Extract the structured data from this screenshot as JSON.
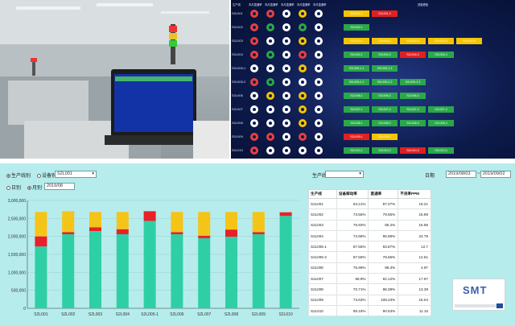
{
  "dashboard": {
    "headers": [
      "生产线",
      "本月直通率",
      "本月直通率",
      "本月直通率",
      "本月直通率",
      "本月直通率",
      "进度看板"
    ],
    "lines": [
      {
        "label": "S2L001",
        "boxes": [
          {
            "text": "S2L001-1",
            "color": "#f5c400"
          },
          {
            "text": "S2L001-2",
            "color": "#e02020"
          }
        ]
      },
      {
        "label": "S2L002",
        "boxes": [
          {
            "text": "S2L002-1",
            "color": "#2aa84a"
          }
        ]
      },
      {
        "label": "S2L003",
        "boxes": [
          {
            "text": "S2L003-1",
            "color": "#f5c400"
          },
          {
            "text": "S2L003-2",
            "color": "#f5c400"
          },
          {
            "text": "S2L003-3",
            "color": "#f5c400"
          },
          {
            "text": "S2L003-4",
            "color": "#f5c400"
          },
          {
            "text": "S2L003-5",
            "color": "#f5c400"
          }
        ]
      },
      {
        "label": "S2L004",
        "boxes": [
          {
            "text": "S2L004-1",
            "color": "#2aa84a"
          },
          {
            "text": "S2L004-2",
            "color": "#2aa84a"
          },
          {
            "text": "S2L004-3",
            "color": "#e02020"
          },
          {
            "text": "S2L004-4",
            "color": "#2aa84a"
          }
        ]
      },
      {
        "label": "S2L005-1",
        "boxes": [
          {
            "text": "S2L005-1-1",
            "color": "#2aa84a"
          },
          {
            "text": "S2L005-1-3",
            "color": "#2aa84a"
          }
        ]
      },
      {
        "label": "S2L005-2",
        "boxes": [
          {
            "text": "S2L005-2-1",
            "color": "#2aa84a"
          },
          {
            "text": "S2L005-2-2",
            "color": "#2aa84a"
          },
          {
            "text": "S2L005-2-3",
            "color": "#2aa84a"
          }
        ]
      },
      {
        "label": "S2L006",
        "boxes": [
          {
            "text": "S2L006-1",
            "color": "#2aa84a"
          },
          {
            "text": "S2L006-2",
            "color": "#2aa84a"
          },
          {
            "text": "S2L006-3",
            "color": "#2aa84a"
          }
        ]
      },
      {
        "label": "S2L007",
        "boxes": [
          {
            "text": "S2L007-1",
            "color": "#2aa84a"
          },
          {
            "text": "S2L007-2",
            "color": "#2aa84a"
          },
          {
            "text": "S2L007-3",
            "color": "#2aa84a"
          },
          {
            "text": "S2L007-4",
            "color": "#2aa84a"
          }
        ]
      },
      {
        "label": "S2L008",
        "boxes": [
          {
            "text": "S2L008-1",
            "color": "#2aa84a"
          },
          {
            "text": "S2L008-2",
            "color": "#2aa84a"
          },
          {
            "text": "S2L008-3",
            "color": "#2aa84a"
          },
          {
            "text": "S2L008-4",
            "color": "#2aa84a"
          }
        ]
      },
      {
        "label": "S2L009",
        "boxes": [
          {
            "text": "S2L009-1",
            "color": "#e02020"
          },
          {
            "text": "S2L009-2",
            "color": "#f5c400"
          }
        ]
      },
      {
        "label": "S2L010",
        "boxes": [
          {
            "text": "S2L010-1",
            "color": "#2aa84a"
          },
          {
            "text": "S2L010-2",
            "color": "#2aa84a"
          },
          {
            "text": "S2L010-3",
            "color": "#e02020"
          },
          {
            "text": "S2L010-4",
            "color": "#2aa84a"
          }
        ]
      }
    ],
    "ring_colors": [
      [
        "#e84040",
        "#e84040",
        "#ffffff",
        "#f5c400",
        "#ffffff"
      ],
      [
        "#e84040",
        "#2aa84a",
        "#ffffff",
        "#2aa84a",
        "#ffffff"
      ],
      [
        "#e84040",
        "#ffffff",
        "#ffffff",
        "#f5c400",
        "#ffffff"
      ],
      [
        "#e84040",
        "#2aa84a",
        "#ffffff",
        "#e84040",
        "#ffffff"
      ],
      [
        "#ffffff",
        "#ffffff",
        "#ffffff",
        "#f5c400",
        "#ffffff"
      ],
      [
        "#e84040",
        "#2aa84a",
        "#ffffff",
        "#ffffff",
        "#ffffff"
      ],
      [
        "#ffffff",
        "#f5c400",
        "#ffffff",
        "#f5c400",
        "#ffffff"
      ],
      [
        "#ffffff",
        "#ffffff",
        "#ffffff",
        "#f5c400",
        "#ffffff"
      ],
      [
        "#ffffff",
        "#ffffff",
        "#ffffff",
        "#f5c400",
        "#ffffff"
      ],
      [
        "#e84040",
        "#e84040",
        "#ffffff",
        "#e84040",
        "#ffffff"
      ],
      [
        "#e84040",
        "#ffffff",
        "#ffffff",
        "#ffffff",
        "#ffffff"
      ]
    ]
  },
  "controls": {
    "production_line_label": "生产线别",
    "equipment_label": "设备别",
    "equipment_value": "S2L001",
    "daily_label": "日别",
    "monthly_label": "月别",
    "month_value": "2019/08",
    "right_line_label": "生产线",
    "right_date_label": "日期",
    "date_from": "2019/08/03",
    "date_sep": "~",
    "date_to": "2019/09/02"
  },
  "table": {
    "headers": [
      "生产线",
      "设备稼动率",
      "直通率",
      "不良率PPM"
    ],
    "rows": [
      [
        "S2L001",
        "63.21%",
        "87.07%",
        "19.21"
      ],
      [
        "S2L002",
        "73.55%",
        "79.65%",
        "16.89"
      ],
      [
        "S2L003",
        "76.93%",
        "85.2%",
        "15.96"
      ],
      [
        "S2L004",
        "72.68%",
        "95.89%",
        "24.79"
      ],
      [
        "S2L005-1",
        "87.55%",
        "83.87%",
        "12.7"
      ],
      [
        "S2L005-2",
        "87.55%",
        "78.65%",
        "12.61"
      ],
      [
        "S2L006",
        "75.99%",
        "99.3%",
        "4.97"
      ],
      [
        "S2L007",
        "68.9%",
        "82.12%",
        "17.97"
      ],
      [
        "S2L008",
        "70.71%",
        "88.39%",
        "13.39"
      ],
      [
        "S2L009",
        "73.63%",
        "108.23%",
        "15.04"
      ],
      [
        "S2L010",
        "95.16%",
        "90.53%",
        "11.15"
      ]
    ]
  },
  "logo": {
    "text": "SMT"
  },
  "chart_data": {
    "type": "bar",
    "stacked": true,
    "categories": [
      "S2L001",
      "S2L002",
      "S2L003",
      "S2L004",
      "S2L005-1",
      "S2L006",
      "S2L007",
      "S2L008",
      "S2L009",
      "S2L010"
    ],
    "series": [
      {
        "values": [
          1720000,
          2060000,
          2150000,
          2060000,
          2430000,
          2060000,
          1950000,
          1990000,
          2060000,
          2570000
        ],
        "color": "#2fcfa6"
      },
      {
        "values": [
          280000,
          60000,
          100000,
          140000,
          270000,
          60000,
          70000,
          200000,
          60000,
          100000
        ],
        "color": "#e8202a"
      },
      {
        "values": [
          680000,
          580000,
          430000,
          480000,
          0,
          560000,
          660000,
          490000,
          560000,
          0
        ],
        "color": "#f5c418"
      }
    ],
    "ylim": [
      0,
      3000000
    ],
    "yticks": [
      "0",
      "500,000",
      "1,000,000",
      "1,500,000",
      "2,000,000",
      "2,500,000",
      "3,000,000"
    ]
  }
}
